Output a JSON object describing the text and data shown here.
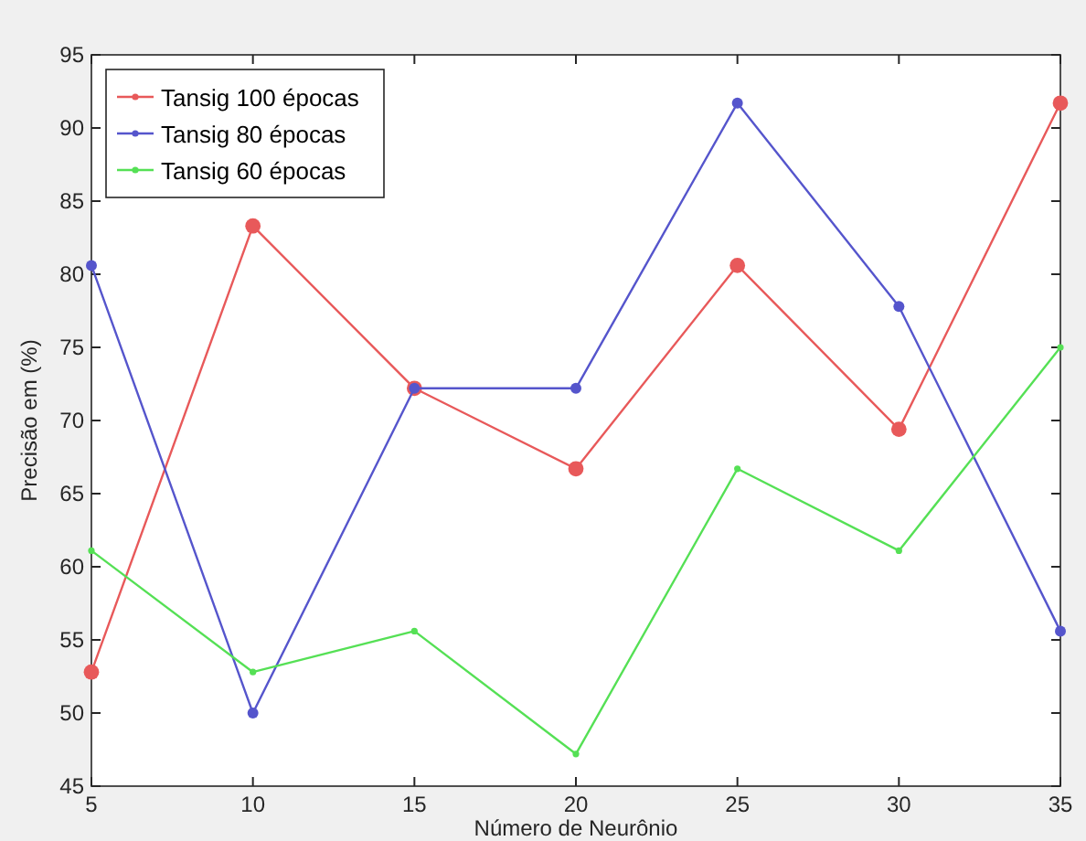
{
  "chart_data": {
    "type": "line",
    "xlabel": "Número de Neurônio",
    "ylabel": "Precisão em (%)",
    "x": [
      5,
      10,
      15,
      20,
      25,
      30,
      35
    ],
    "series": [
      {
        "name": "Tansig 100 épocas",
        "color": "#e8595a",
        "values": [
          52.8,
          83.3,
          72.2,
          66.7,
          80.6,
          69.4,
          91.7
        ]
      },
      {
        "name": "Tansig 80 épocas",
        "color": "#5555cc",
        "values": [
          80.6,
          50,
          72.2,
          72.2,
          91.7,
          77.8,
          55.6
        ]
      },
      {
        "name": "Tansig 60 épocas",
        "color": "#55e055",
        "values": [
          61.1,
          52.8,
          55.6,
          47.2,
          66.7,
          61.1,
          75
        ]
      }
    ],
    "xlim": [
      5,
      35
    ],
    "xticks": [
      5,
      10,
      15,
      20,
      25,
      30,
      35
    ],
    "ylim": [
      45,
      95
    ],
    "yticks": [
      45,
      50,
      55,
      60,
      65,
      70,
      75,
      80,
      85,
      90,
      95
    ],
    "grid": false,
    "legend": "top left",
    "marker": "circle",
    "line_style": "solid"
  }
}
